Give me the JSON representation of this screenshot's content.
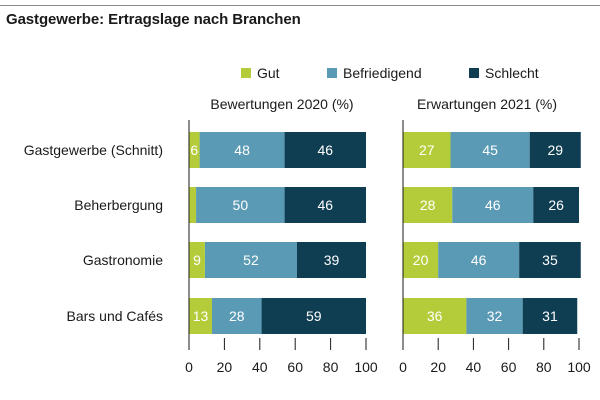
{
  "title": "Gastgewerbe: Ertragslage nach Branchen",
  "colors": {
    "Gut": "#b5cc3a",
    "Befriedigend": "#5a9ab4",
    "Schlecht": "#0f3d52",
    "axis": "#1a1a1a"
  },
  "chart_data": {
    "type": "bar",
    "orientation": "horizontal",
    "stacked": true,
    "legend_position": "top",
    "categories": [
      "Gastgewerbe (Schnitt)",
      "Beherbergung",
      "Gastronomie",
      "Bars und Cafés"
    ],
    "series_names": [
      "Gut",
      "Befriedigend",
      "Schlecht"
    ],
    "panels": [
      {
        "title": "Bewertungen 2020 (%)",
        "xlim": [
          0,
          100
        ],
        "xticks": [
          0,
          20,
          40,
          60,
          80,
          100
        ],
        "series": [
          {
            "name": "Gut",
            "values": [
              6,
              4,
              9,
              13
            ],
            "labels": [
              "6",
              "",
              "9",
              "13"
            ]
          },
          {
            "name": "Befriedigend",
            "values": [
              48,
              50,
              52,
              28
            ],
            "labels": [
              "48",
              "50",
              "52",
              "28"
            ]
          },
          {
            "name": "Schlecht",
            "values": [
              46,
              46,
              39,
              59
            ],
            "labels": [
              "46",
              "46",
              "39",
              "59"
            ]
          }
        ]
      },
      {
        "title": "Erwartungen 2021 (%)",
        "xlim": [
          0,
          100
        ],
        "xticks": [
          0,
          20,
          40,
          60,
          80,
          100
        ],
        "series": [
          {
            "name": "Gut",
            "values": [
              27,
              28,
              20,
              36
            ],
            "labels": [
              "27",
              "28",
              "20",
              "36"
            ]
          },
          {
            "name": "Befriedigend",
            "values": [
              45,
              46,
              46,
              32
            ],
            "labels": [
              "45",
              "46",
              "46",
              "32"
            ]
          },
          {
            "name": "Schlecht",
            "values": [
              29,
              26,
              35,
              31
            ],
            "labels": [
              "29",
              "26",
              "35",
              "31"
            ]
          }
        ]
      }
    ]
  }
}
